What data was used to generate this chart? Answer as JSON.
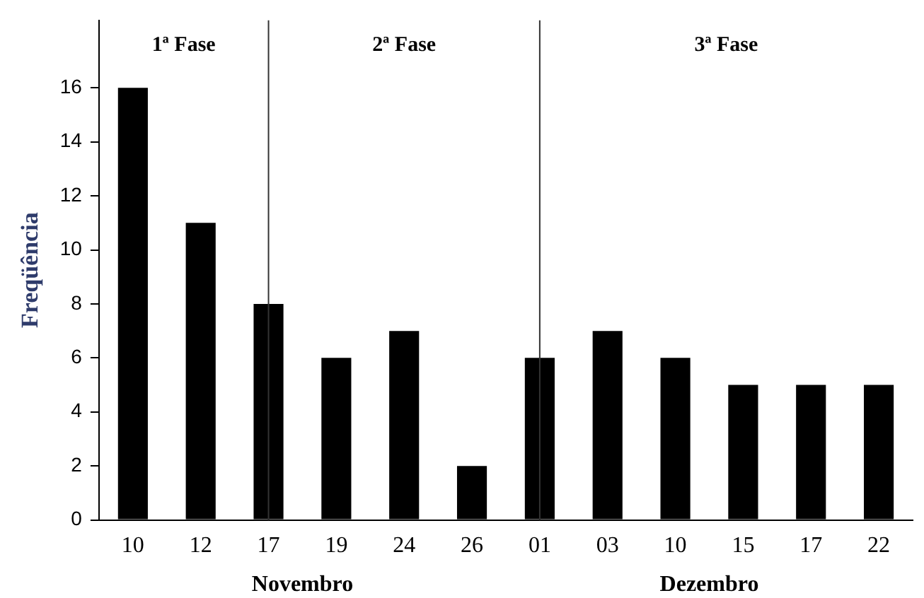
{
  "chart_data": {
    "type": "bar",
    "ylabel": "Freqüência",
    "categories": [
      "10",
      "12",
      "17",
      "19",
      "24",
      "26",
      "01",
      "03",
      "10",
      "15",
      "17",
      "22"
    ],
    "values": [
      16,
      11,
      8,
      6,
      7,
      2,
      6,
      7,
      6,
      5,
      5,
      5
    ],
    "color": "#000000",
    "ylim": [
      0,
      18.5
    ],
    "yticks": [
      0,
      2,
      4,
      6,
      8,
      10,
      12,
      14,
      16
    ],
    "grid": false,
    "legend": false,
    "ref_lines": [
      {
        "axis": "x",
        "value": "17",
        "color": "#333333"
      },
      {
        "axis": "x",
        "value": "01",
        "color": "#333333"
      }
    ],
    "annotations": [
      "1ª Fase",
      "2ª Fase",
      "3ª Fase",
      "Novembro",
      "Dezembro"
    ]
  }
}
